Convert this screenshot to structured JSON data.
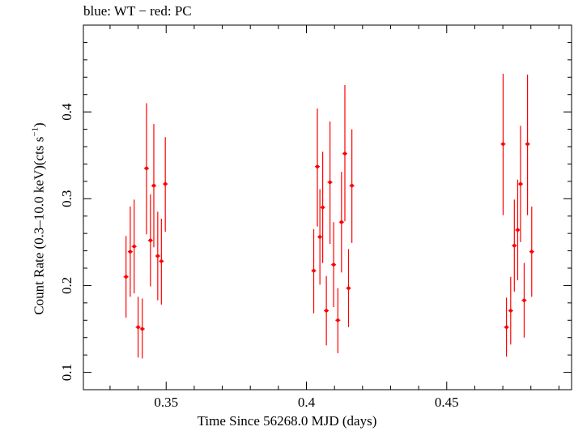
{
  "chart_data": {
    "type": "scatter",
    "title": "blue: WT − red: PC",
    "xlabel": "Time Since 56268.0 MJD (days)",
    "ylabel_main": "Count Rate (0.3–10.0 keV)(cts s",
    "ylabel_sup": "−1",
    "ylabel_close": ")",
    "xlim": [
      0.3205,
      0.4945
    ],
    "ylim": [
      0.08,
      0.5
    ],
    "x_ticks": [
      0.35,
      0.4,
      0.45
    ],
    "x_tick_labels": [
      "0.35",
      "0.4",
      "0.45"
    ],
    "y_ticks": [
      0.1,
      0.2,
      0.3,
      0.4
    ],
    "y_tick_labels": [
      "0.1",
      "0.2",
      "0.3",
      "0.4"
    ],
    "series": [
      {
        "name": "PC",
        "color": "#ff0000",
        "points": [
          {
            "x": 0.3357,
            "y": 0.21,
            "lo": 0.163,
            "hi": 0.257
          },
          {
            "x": 0.3372,
            "y": 0.239,
            "lo": 0.187,
            "hi": 0.291
          },
          {
            "x": 0.3386,
            "y": 0.245,
            "lo": 0.191,
            "hi": 0.299
          },
          {
            "x": 0.34,
            "y": 0.152,
            "lo": 0.117,
            "hi": 0.187
          },
          {
            "x": 0.3415,
            "y": 0.15,
            "lo": 0.116,
            "hi": 0.185
          },
          {
            "x": 0.343,
            "y": 0.335,
            "lo": 0.259,
            "hi": 0.41
          },
          {
            "x": 0.3444,
            "y": 0.252,
            "lo": 0.199,
            "hi": 0.305
          },
          {
            "x": 0.3456,
            "y": 0.315,
            "lo": 0.244,
            "hi": 0.386
          },
          {
            "x": 0.347,
            "y": 0.234,
            "lo": 0.183,
            "hi": 0.285
          },
          {
            "x": 0.3483,
            "y": 0.228,
            "lo": 0.178,
            "hi": 0.277
          },
          {
            "x": 0.3497,
            "y": 0.317,
            "lo": 0.262,
            "hi": 0.371
          },
          {
            "x": 0.4026,
            "y": 0.217,
            "lo": 0.168,
            "hi": 0.265
          },
          {
            "x": 0.4039,
            "y": 0.337,
            "lo": 0.268,
            "hi": 0.404
          },
          {
            "x": 0.4048,
            "y": 0.256,
            "lo": 0.201,
            "hi": 0.311
          },
          {
            "x": 0.4058,
            "y": 0.29,
            "lo": 0.226,
            "hi": 0.354
          },
          {
            "x": 0.4071,
            "y": 0.171,
            "lo": 0.131,
            "hi": 0.211
          },
          {
            "x": 0.4084,
            "y": 0.319,
            "lo": 0.248,
            "hi": 0.389
          },
          {
            "x": 0.4097,
            "y": 0.224,
            "lo": 0.175,
            "hi": 0.273
          },
          {
            "x": 0.4112,
            "y": 0.16,
            "lo": 0.122,
            "hi": 0.197
          },
          {
            "x": 0.4125,
            "y": 0.273,
            "lo": 0.215,
            "hi": 0.331
          },
          {
            "x": 0.4137,
            "y": 0.352,
            "lo": 0.274,
            "hi": 0.431
          },
          {
            "x": 0.415,
            "y": 0.197,
            "lo": 0.152,
            "hi": 0.242
          },
          {
            "x": 0.4162,
            "y": 0.315,
            "lo": 0.249,
            "hi": 0.38
          },
          {
            "x": 0.4701,
            "y": 0.363,
            "lo": 0.281,
            "hi": 0.444
          },
          {
            "x": 0.4713,
            "y": 0.152,
            "lo": 0.118,
            "hi": 0.186
          },
          {
            "x": 0.4728,
            "y": 0.171,
            "lo": 0.132,
            "hi": 0.21
          },
          {
            "x": 0.4741,
            "y": 0.246,
            "lo": 0.193,
            "hi": 0.299
          },
          {
            "x": 0.4753,
            "y": 0.264,
            "lo": 0.206,
            "hi": 0.322
          },
          {
            "x": 0.4763,
            "y": 0.317,
            "lo": 0.25,
            "hi": 0.384
          },
          {
            "x": 0.4776,
            "y": 0.183,
            "lo": 0.14,
            "hi": 0.226
          },
          {
            "x": 0.4788,
            "y": 0.363,
            "lo": 0.281,
            "hi": 0.443
          },
          {
            "x": 0.4803,
            "y": 0.239,
            "lo": 0.187,
            "hi": 0.291
          }
        ]
      }
    ]
  }
}
